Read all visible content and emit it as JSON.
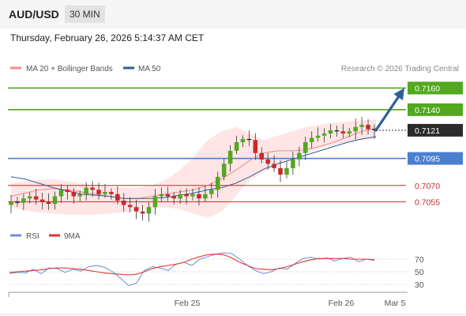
{
  "header": {
    "pair": "AUD/USD",
    "timeframe": "30 MIN",
    "datetime": "Thursday, February 26, 2026 5:14:37 AM CET"
  },
  "legend": {
    "ma20": "MA 20 + Bollinger Bands",
    "ma50": "MA 50",
    "credit": "Research © 2026 Trading Central",
    "rsi": "RSI",
    "rsi_ma": "9MA"
  },
  "colors": {
    "bullish": "#52a81e",
    "neutral": "#2b2b2b",
    "bearish": "#c92929",
    "support_line": "#4a7fd0",
    "ma20": "#f08a8a",
    "ma50": "#2e5e99",
    "band_fill": "#ffdede",
    "arrow": "#2e5e99",
    "rsi": "#6b8fd6",
    "rsi_ma": "#e23333"
  },
  "chart_data": [
    {
      "type": "candlestick",
      "title": "AUD/USD 30 MIN",
      "x_ticks": [
        "Feb 25",
        "Feb 26",
        "Mar 5"
      ],
      "ylim": [
        0.7037,
        0.7172
      ],
      "last_price": 0.7121,
      "levels": [
        {
          "name": "resistance-2",
          "value": 0.716,
          "label": "0.7160",
          "color": "#52a81e"
        },
        {
          "name": "resistance-1",
          "value": 0.714,
          "label": "0.7140",
          "color": "#52a81e"
        },
        {
          "name": "pivot",
          "value": 0.7095,
          "label": "0.7095",
          "color": "#4a7fd0"
        },
        {
          "name": "support-1",
          "value": 0.707,
          "label": "0.7070",
          "color": "#c92929"
        },
        {
          "name": "support-2",
          "value": 0.7055,
          "label": "0.7055",
          "color": "#c92929"
        }
      ],
      "close_path": [
        0.7055,
        0.7054,
        0.7058,
        0.706,
        0.7057,
        0.7055,
        0.7053,
        0.706,
        0.7066,
        0.7064,
        0.706,
        0.7062,
        0.7068,
        0.7066,
        0.7062,
        0.7064,
        0.7062,
        0.7056,
        0.7052,
        0.705,
        0.7046,
        0.7044,
        0.705,
        0.706,
        0.7062,
        0.706,
        0.7058,
        0.7062,
        0.706,
        0.7062,
        0.7058,
        0.7062,
        0.7066,
        0.7078,
        0.709,
        0.7102,
        0.711,
        0.7113,
        0.7112,
        0.71,
        0.7094,
        0.709,
        0.7086,
        0.708,
        0.7086,
        0.7094,
        0.71,
        0.711,
        0.7114,
        0.7116,
        0.7118,
        0.7121,
        0.712,
        0.7118,
        0.712,
        0.7124,
        0.7126,
        0.7122,
        0.7121
      ],
      "ma20": [
        0.706,
        0.7063,
        0.7066,
        0.7067,
        0.7066,
        0.7064,
        0.7062,
        0.706,
        0.7058,
        0.7058,
        0.706,
        0.7062,
        0.7064,
        0.7066,
        0.707,
        0.7076,
        0.7084,
        0.7093,
        0.71,
        0.7102,
        0.7102,
        0.7103,
        0.7106,
        0.711,
        0.7115,
        0.712,
        0.7123
      ],
      "ma50": [
        0.7078,
        0.7076,
        0.7072,
        0.7068,
        0.7065,
        0.7062,
        0.7061,
        0.706,
        0.7058,
        0.7058,
        0.7058,
        0.7059,
        0.7061,
        0.7063,
        0.7066,
        0.7068,
        0.7072,
        0.7078,
        0.7085,
        0.709,
        0.7094,
        0.7098,
        0.7102,
        0.7106,
        0.711,
        0.7113,
        0.7115
      ],
      "bb_upper": [
        0.7072,
        0.7074,
        0.7075,
        0.7076,
        0.7074,
        0.7072,
        0.707,
        0.7069,
        0.7068,
        0.7068,
        0.707,
        0.7075,
        0.7084,
        0.7096,
        0.7112,
        0.712,
        0.7124,
        0.7118,
        0.7112,
        0.7116,
        0.712,
        0.7124,
        0.7126,
        0.7128,
        0.7129,
        0.713,
        0.7131
      ],
      "bb_lower": [
        0.705,
        0.7047,
        0.7045,
        0.7044,
        0.7043,
        0.7043,
        0.7043,
        0.7044,
        0.7045,
        0.7047,
        0.7049,
        0.705,
        0.7048,
        0.7044,
        0.704,
        0.7046,
        0.706,
        0.7075,
        0.7082,
        0.709,
        0.7095,
        0.71,
        0.7104,
        0.7108,
        0.711,
        0.7112,
        0.7114
      ]
    },
    {
      "type": "line",
      "title": "RSI",
      "series": [
        {
          "name": "RSI",
          "values": [
            47,
            49,
            48,
            54,
            47,
            56,
            55,
            49,
            54,
            51,
            58,
            60,
            57,
            50,
            40,
            28,
            32,
            52,
            58,
            56,
            52,
            62,
            65,
            60,
            70,
            74,
            78,
            80,
            79,
            70,
            60,
            52,
            47,
            50,
            56,
            54,
            63,
            71,
            73,
            70,
            72,
            67,
            71,
            73,
            66,
            70,
            68
          ]
        },
        {
          "name": "9MA",
          "values": [
            49,
            50,
            51,
            52,
            53,
            55,
            56,
            56,
            55,
            54,
            52,
            50,
            48,
            47,
            46,
            45,
            46,
            50,
            55,
            58,
            60,
            62,
            65,
            70,
            74,
            77,
            78,
            77,
            72,
            65,
            60,
            55,
            54,
            53,
            55,
            58,
            62,
            66,
            69,
            71,
            71,
            71,
            71,
            70,
            70,
            70,
            69
          ]
        }
      ],
      "y_ticks": [
        70,
        50,
        30
      ],
      "ylim": [
        20,
        90
      ]
    }
  ]
}
